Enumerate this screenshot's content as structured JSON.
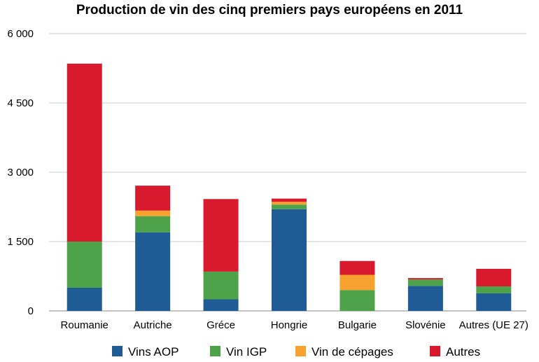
{
  "chart_data": {
    "type": "bar",
    "stacked": true,
    "title": "Production de vin des cinq premiers pays européens en 2011",
    "xlabel": "",
    "ylabel": "",
    "ylim": [
      0,
      6000
    ],
    "yticks": [
      0,
      1500,
      3000,
      4500,
      6000
    ],
    "ytick_labels": [
      "0",
      "1 500",
      "3 000",
      "4 500",
      "6 000"
    ],
    "grid": true,
    "legend_position": "bottom",
    "categories": [
      "Roumanie",
      "Autriche",
      "Gréce",
      "Hongrie",
      "Bulgarie",
      "Slovénie",
      "Autres (UE 27)"
    ],
    "series": [
      {
        "name": "Vins AOP",
        "color": "#1f5b94",
        "values": [
          500,
          1700,
          250,
          2200,
          0,
          540,
          380
        ]
      },
      {
        "name": "Vin IGP",
        "color": "#4ea24a",
        "values": [
          1000,
          350,
          600,
          100,
          450,
          140,
          150
        ]
      },
      {
        "name": "Vin de cépages",
        "color": "#f7a12e",
        "values": [
          0,
          120,
          0,
          60,
          330,
          0,
          0
        ]
      },
      {
        "name": "Autres",
        "color": "#d8192e",
        "values": [
          3850,
          540,
          1570,
          70,
          300,
          30,
          380
        ]
      }
    ]
  }
}
